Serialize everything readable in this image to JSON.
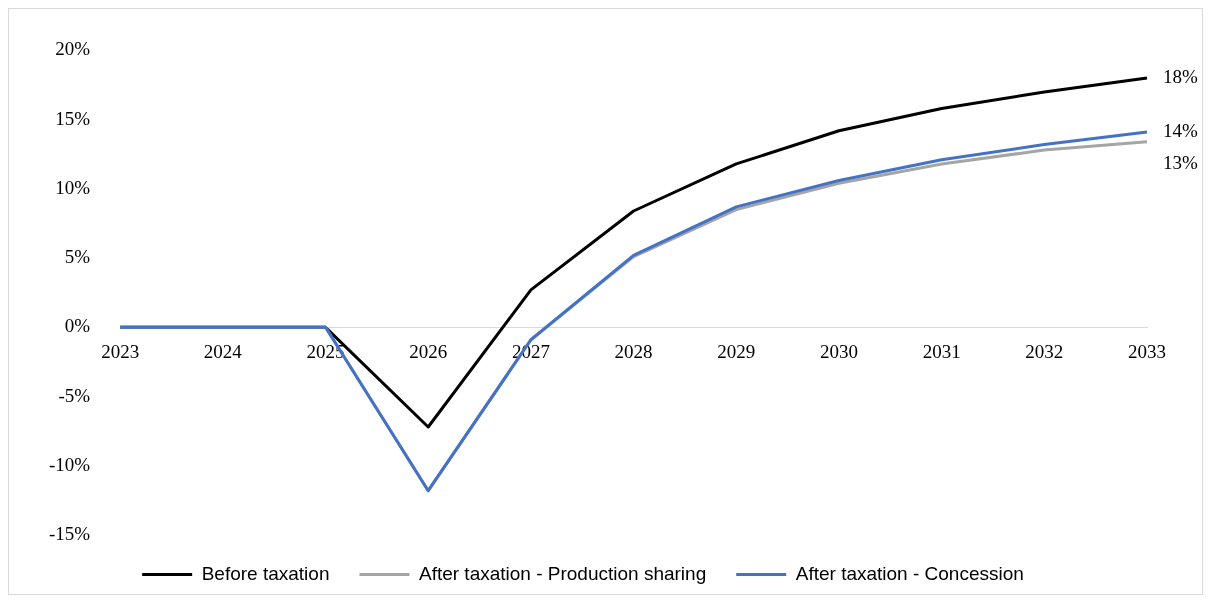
{
  "chart_data": {
    "type": "line",
    "categories": [
      "2023",
      "2024",
      "2025",
      "2026",
      "2027",
      "2028",
      "2029",
      "2030",
      "2031",
      "2032",
      "2033"
    ],
    "series": [
      {
        "name": "Before taxation",
        "color": "#000000",
        "values": [
          0,
          0,
          0,
          -7.2,
          2.7,
          8.4,
          11.8,
          14.2,
          15.8,
          17.0,
          18.0
        ],
        "value_labels": [
          null,
          null,
          null,
          null,
          null,
          null,
          null,
          null,
          null,
          null,
          "18%"
        ]
      },
      {
        "name": "After taxation - Production sharing",
        "color": "#a5a5a5",
        "values": [
          0,
          0,
          0,
          -11.8,
          -0.9,
          5.1,
          8.5,
          10.4,
          11.8,
          12.8,
          13.4
        ],
        "value_labels": [
          null,
          null,
          null,
          null,
          null,
          null,
          null,
          null,
          null,
          null,
          "13%"
        ]
      },
      {
        "name": "After taxation - Concession",
        "color": "#4472c4",
        "values": [
          0,
          0,
          0,
          -11.8,
          -0.9,
          5.2,
          8.7,
          10.6,
          12.1,
          13.2,
          14.1
        ],
        "value_labels": [
          null,
          null,
          null,
          null,
          null,
          null,
          null,
          null,
          null,
          null,
          "14%"
        ]
      }
    ],
    "ylim": [
      -15,
      20
    ],
    "yticks": [
      {
        "value": -15,
        "label": "-15%"
      },
      {
        "value": -10,
        "label": "-10%"
      },
      {
        "value": -5,
        "label": "-5%"
      },
      {
        "value": 0,
        "label": "0%"
      },
      {
        "value": 5,
        "label": "5%"
      },
      {
        "value": 10,
        "label": "10%"
      },
      {
        "value": 15,
        "label": "15%"
      },
      {
        "value": 20,
        "label": "20%"
      }
    ],
    "grid": false,
    "legend": "bottom",
    "marker": "none",
    "line_style": "solid"
  }
}
